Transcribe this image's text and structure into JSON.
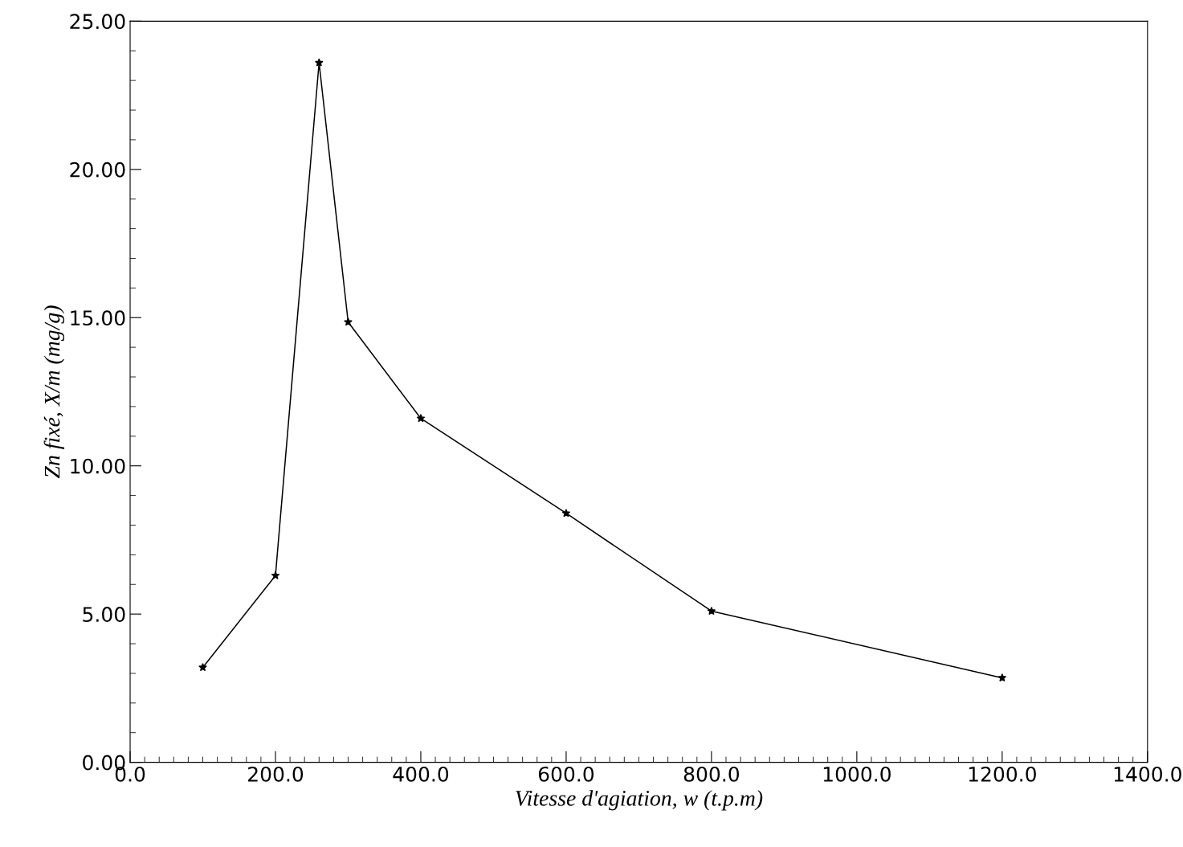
{
  "chart_data": {
    "type": "line",
    "xlabel": "Vitesse d'agiation, w (t.p.m)",
    "ylabel": "Zn fixé, X/m (mg/g)",
    "x": [
      100,
      200,
      260,
      300,
      400,
      600,
      800,
      1200
    ],
    "series": [
      {
        "color": "#000000",
        "values": [
          3.2,
          6.3,
          23.6,
          14.85,
          11.6,
          8.4,
          5.1,
          2.85
        ]
      }
    ],
    "xlim": [
      0,
      1400
    ],
    "ylim": [
      0,
      25
    ],
    "xticks": [
      {
        "value": 0,
        "label": "0.0"
      },
      {
        "value": 200,
        "label": "200.0"
      },
      {
        "value": 400,
        "label": "400.0"
      },
      {
        "value": 600,
        "label": "600.0"
      },
      {
        "value": 800,
        "label": "800.0"
      },
      {
        "value": 1000,
        "label": "1000.0"
      },
      {
        "value": 1200,
        "label": "1200.0"
      },
      {
        "value": 1400,
        "label": "1400.0"
      }
    ],
    "yticks": [
      {
        "value": 0,
        "label": "0.00"
      },
      {
        "value": 5,
        "label": "5.00"
      },
      {
        "value": 10,
        "label": "10.00"
      },
      {
        "value": 15,
        "label": "15.00"
      },
      {
        "value": 20,
        "label": "20.00"
      },
      {
        "value": 25,
        "label": "25.00"
      }
    ],
    "grid": false,
    "legend": false,
    "marker": "star",
    "line_style": "solid"
  }
}
